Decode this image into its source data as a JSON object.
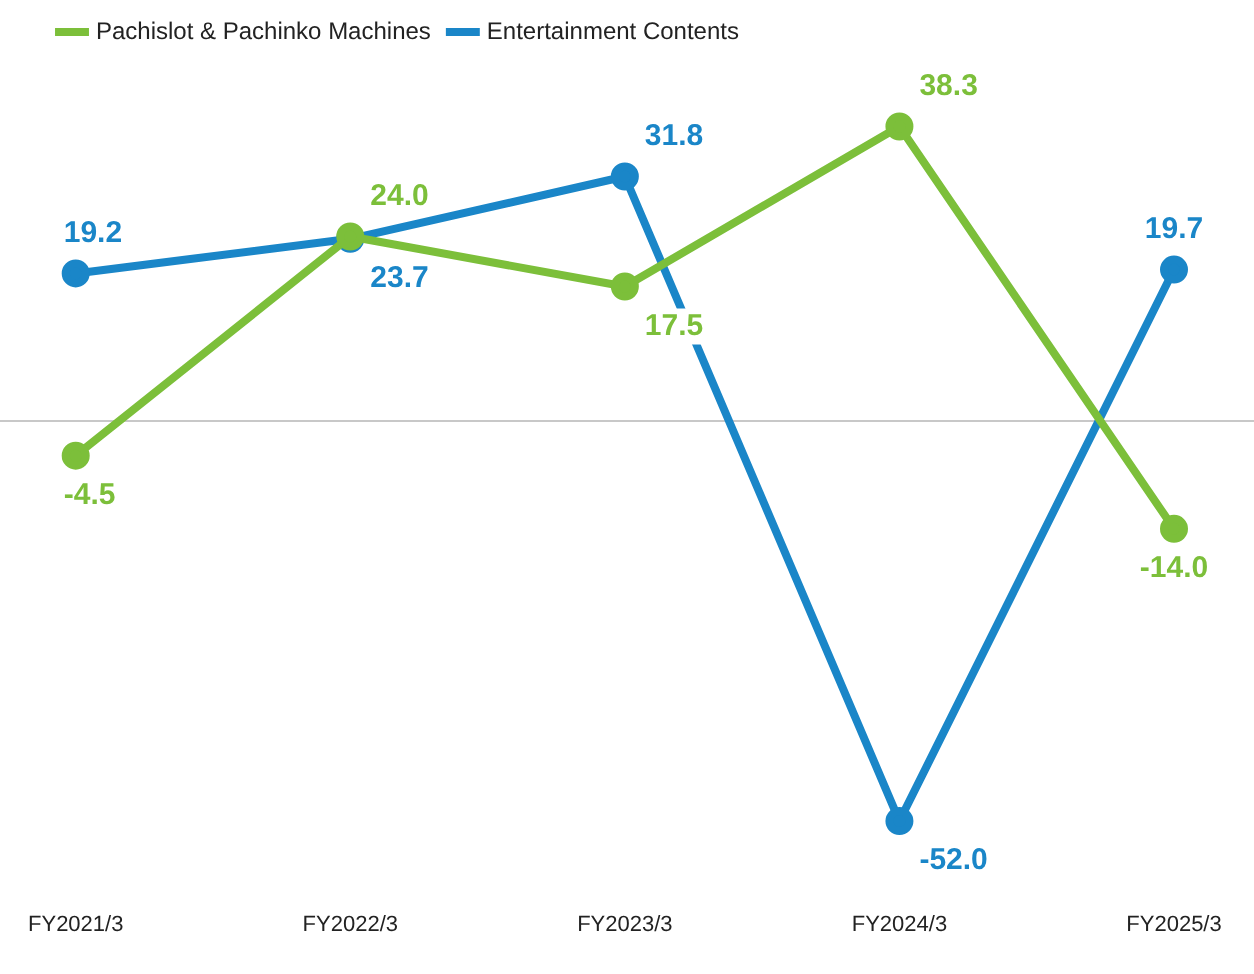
{
  "chart_data": {
    "type": "line",
    "categories": [
      "FY2021/3",
      "FY2022/3",
      "FY2023/3",
      "FY2024/3",
      "FY2025/3"
    ],
    "series": [
      {
        "name": "Pachislot & Pachinko Machines",
        "color": "#7cbf3a",
        "values": [
          -4.5,
          24.0,
          17.5,
          38.3,
          -14.0
        ],
        "value_labels": [
          "-4.5",
          "24.0",
          "17.5",
          "38.3",
          "-14.0"
        ]
      },
      {
        "name": "Entertainment Contents",
        "color": "#1a86c8",
        "values": [
          19.2,
          23.7,
          31.8,
          -52.0,
          19.7
        ],
        "value_labels": [
          "19.2",
          "23.7",
          "31.8",
          "-52.0",
          "19.7"
        ]
      }
    ],
    "marker": "circle",
    "line_style": "solid",
    "legend": "top left",
    "grid": false,
    "ref_lines": [
      {
        "axis": "y",
        "value": 0,
        "color": "#c8c8c8"
      }
    ]
  }
}
